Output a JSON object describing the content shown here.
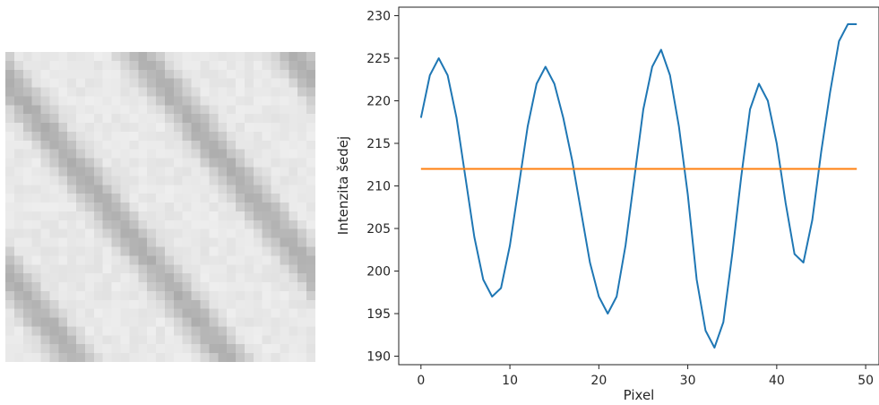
{
  "image_panel": {
    "grid_size": 35,
    "stripe_count": 4,
    "tone": "grayscale"
  },
  "chart_data": {
    "type": "line",
    "xlabel": "Pixel",
    "ylabel": "Intenzita šedej",
    "xlim": [
      -2.5,
      51.5
    ],
    "ylim": [
      189,
      231
    ],
    "xticks": [
      0,
      10,
      20,
      30,
      40,
      50
    ],
    "yticks": [
      190,
      195,
      200,
      205,
      210,
      215,
      220,
      225,
      230
    ],
    "grid": false,
    "legend": "none",
    "series": [
      {
        "color": "#1f77b4",
        "x": [
          0,
          1,
          2,
          3,
          4,
          5,
          6,
          7,
          8,
          9,
          10,
          11,
          12,
          13,
          14,
          15,
          16,
          17,
          18,
          19,
          20,
          21,
          22,
          23,
          24,
          25,
          26,
          27,
          28,
          29,
          30,
          31,
          32,
          33,
          34,
          35,
          36,
          37,
          38,
          39,
          40,
          41,
          42,
          43,
          44,
          45,
          46,
          47,
          48,
          49
        ],
        "values": [
          218,
          223,
          225,
          223,
          218,
          211,
          204,
          199,
          197,
          198,
          203,
          210,
          217,
          222,
          224,
          222,
          218,
          213,
          207,
          201,
          197,
          195,
          197,
          203,
          211,
          219,
          224,
          226,
          223,
          217,
          209,
          199,
          193,
          191,
          194,
          202,
          211,
          219,
          222,
          220,
          215,
          208,
          202,
          201,
          206,
          214,
          221,
          227,
          229,
          229
        ]
      },
      {
        "color": "#ff7f0e",
        "x": [
          0,
          49
        ],
        "values": [
          212,
          212
        ]
      }
    ]
  }
}
